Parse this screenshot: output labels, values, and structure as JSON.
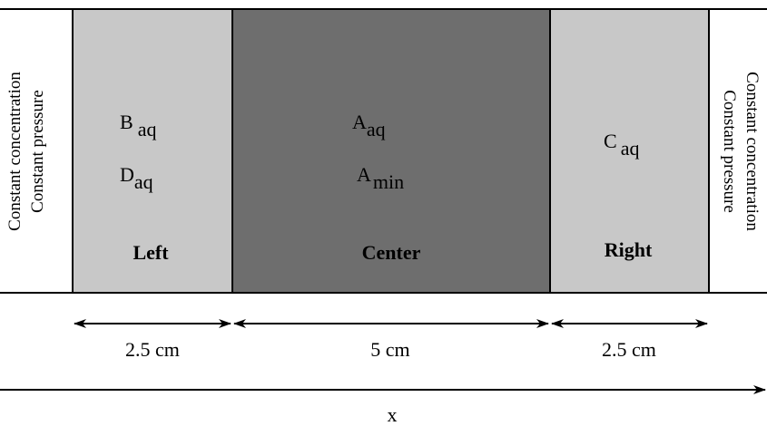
{
  "boundaries": {
    "left": [
      "Constant concentration",
      "Constant pressure"
    ],
    "right": [
      "Constant concentration",
      "Constant pressure"
    ]
  },
  "regions": [
    {
      "name": "Left",
      "species": [
        {
          "symbol": "B",
          "subscript": "aq"
        },
        {
          "symbol": "D",
          "subscript": "aq"
        }
      ]
    },
    {
      "name": "Center",
      "species": [
        {
          "symbol": "A",
          "subscript": "aq"
        },
        {
          "symbol": "A",
          "subscript": "min"
        }
      ]
    },
    {
      "name": "Right",
      "species": [
        {
          "symbol": "C",
          "subscript": "aq"
        }
      ]
    }
  ],
  "widths": [
    "2.5 cm",
    "5 cm",
    "2.5 cm"
  ],
  "axis": "x"
}
